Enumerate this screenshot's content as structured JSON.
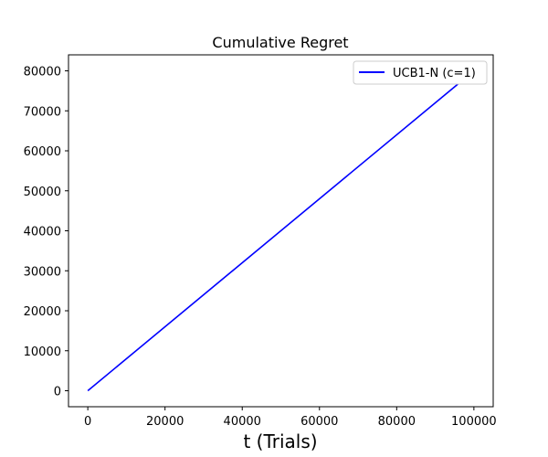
{
  "chart_data": {
    "type": "line",
    "title": "Cumulative Regret",
    "xlabel": "t (Trials)",
    "ylabel": "",
    "xlim": [
      -5000,
      105000
    ],
    "ylim": [
      -4000,
      84000
    ],
    "xticks": [
      0,
      20000,
      40000,
      60000,
      80000,
      100000
    ],
    "xtick_labels": [
      "0",
      "20000",
      "40000",
      "60000",
      "80000",
      "100000"
    ],
    "yticks": [
      0,
      10000,
      20000,
      30000,
      40000,
      50000,
      60000,
      70000,
      80000
    ],
    "ytick_labels": [
      "0",
      "10000",
      "20000",
      "30000",
      "40000",
      "50000",
      "60000",
      "70000",
      "80000"
    ],
    "grid": false,
    "legend_position": "top-right",
    "series": [
      {
        "name": "UCB1-N (c=1)",
        "color": "#0000ff",
        "x": [
          0,
          100000
        ],
        "y": [
          0,
          80000
        ]
      }
    ]
  }
}
